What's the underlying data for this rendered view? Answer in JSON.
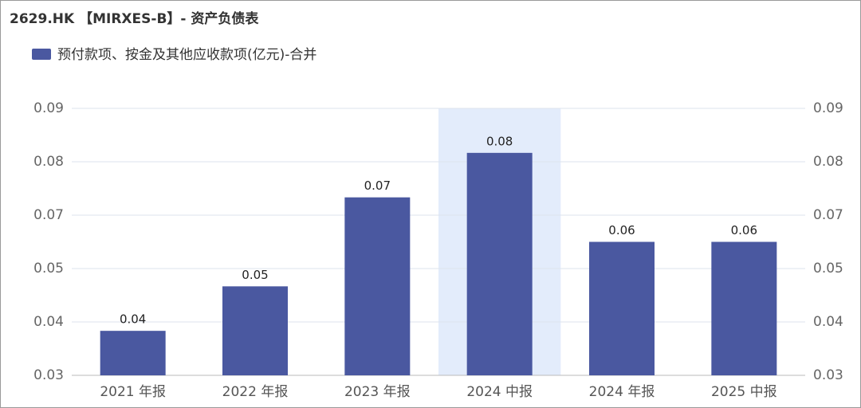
{
  "chart_data": {
    "type": "bar",
    "title": "2629.HK 【MIRXES-B】- 资产负债表",
    "categories": [
      "2021 年报",
      "2022 年报",
      "2023 年报",
      "2024 中报",
      "2024 年报",
      "2025 中报"
    ],
    "series": [
      {
        "name": "预付款项、按金及其他应收款项(亿元)-合并",
        "color": "#4a58a0",
        "values": [
          0.04,
          0.05,
          0.07,
          0.08,
          0.06,
          0.06
        ]
      }
    ],
    "ylim": [
      0.03,
      0.09
    ],
    "yticks": [
      0.03,
      {
        "value": 0.042,
        "label": "0.04"
      },
      {
        "value": 0.054,
        "label": "0.05"
      },
      {
        "value": 0.066,
        "label": "0.07"
      },
      {
        "value": 0.078,
        "label": "0.08"
      },
      0.09
    ],
    "y2lim": [
      0.03,
      0.09
    ],
    "y2ticks": [
      0.03,
      {
        "value": 0.042,
        "label": "0.04"
      },
      {
        "value": 0.054,
        "label": "0.05"
      },
      {
        "value": 0.066,
        "label": "0.07"
      },
      {
        "value": 0.078,
        "label": "0.08"
      },
      0.09
    ],
    "highlight": 3,
    "grid": true
  }
}
